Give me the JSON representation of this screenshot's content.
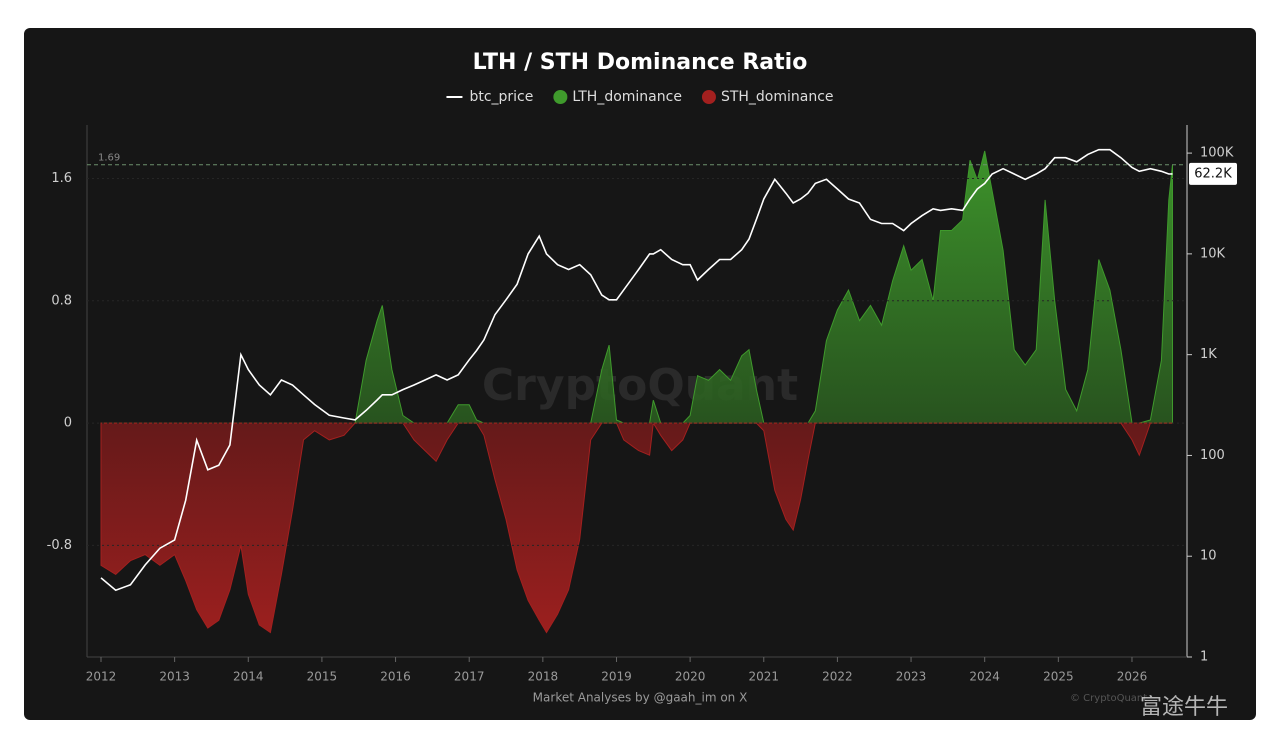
{
  "chart_data": {
    "type": "area_line",
    "title": "LTH / STH Dominance Ratio",
    "footer": "Market Analyses by @gaah_im on X",
    "watermark": "CryptoQuant",
    "copyright": "© CryptoQuant",
    "corner_mark": "富途牛牛",
    "ref_line": {
      "value": 1.69,
      "label": "1.69"
    },
    "last_price": {
      "value": 62200,
      "label": "62.2K"
    },
    "legend": "top",
    "xlim": [
      2011.81,
      2026.72
    ],
    "xticks": [
      2012,
      2013,
      2014,
      2015,
      2016,
      2017,
      2018,
      2019,
      2020,
      2021,
      2022,
      2023,
      2024,
      2025,
      2026
    ],
    "ylim": [
      -1.53,
      1.95
    ],
    "yticks": [
      -0.8,
      0,
      0.8,
      1.6
    ],
    "y2lim": [
      1,
      190000
    ],
    "y2scale": "log",
    "y2ticks": [
      1,
      10,
      100,
      {
        "value": 1000,
        "label": "1K"
      },
      {
        "value": 10000,
        "label": "10K"
      },
      {
        "value": 100000,
        "label": "100K"
      }
    ],
    "x": [
      2012.0,
      2012.2,
      2012.4,
      2012.6,
      2012.8,
      2013.0,
      2013.15,
      2013.3,
      2013.45,
      2013.6,
      2013.75,
      2013.9,
      2014.0,
      2014.15,
      2014.3,
      2014.45,
      2014.6,
      2014.75,
      2014.9,
      2015.1,
      2015.3,
      2015.45,
      2015.6,
      2015.75,
      2015.82,
      2015.95,
      2016.1,
      2016.25,
      2016.4,
      2016.55,
      2016.7,
      2016.85,
      2017.0,
      2017.1,
      2017.2,
      2017.35,
      2017.5,
      2017.65,
      2017.8,
      2017.95,
      2018.05,
      2018.2,
      2018.35,
      2018.5,
      2018.65,
      2018.8,
      2018.9,
      2019.0,
      2019.1,
      2019.3,
      2019.45,
      2019.5,
      2019.6,
      2019.75,
      2019.9,
      2020.0,
      2020.1,
      2020.25,
      2020.4,
      2020.55,
      2020.7,
      2020.8,
      2020.9,
      2021.0,
      2021.15,
      2021.3,
      2021.4,
      2021.5,
      2021.6,
      2021.7,
      2021.85,
      2022.0,
      2022.15,
      2022.3,
      2022.45,
      2022.6,
      2022.75,
      2022.9,
      2023.0,
      2023.15,
      2023.3,
      2023.4,
      2023.55,
      2023.7,
      2023.8,
      2023.9,
      2024.0,
      2024.1,
      2024.25,
      2024.4,
      2024.55,
      2024.7,
      2024.82,
      2024.95,
      2025.1,
      2025.25,
      2025.4,
      2025.55,
      2025.7,
      2025.85,
      2026.0,
      2026.1,
      2026.25,
      2026.4,
      2026.5,
      2026.55
    ],
    "series": [
      {
        "name": "btc_price",
        "color": "#ffffff",
        "axis": "y2",
        "values": [
          6.1,
          4.6,
          5.2,
          8.2,
          12,
          14.5,
          36,
          142,
          72,
          80,
          127,
          1000,
          710,
          500,
          400,
          560,
          500,
          400,
          320,
          250,
          235,
          225,
          280,
          355,
          400,
          400,
          450,
          500,
          560,
          630,
          560,
          630,
          890,
          1100,
          1400,
          2500,
          3500,
          5000,
          10000,
          15000,
          10000,
          7800,
          7000,
          7800,
          6200,
          3900,
          3500,
          3500,
          4400,
          7000,
          10000,
          10000,
          11000,
          8800,
          7800,
          7800,
          5500,
          7000,
          8800,
          8800,
          11000,
          14000,
          22000,
          35000,
          55000,
          40000,
          32000,
          35000,
          40000,
          50000,
          55000,
          44000,
          35000,
          32000,
          22000,
          20000,
          20000,
          17000,
          20000,
          24000,
          28000,
          27000,
          28000,
          27000,
          35000,
          44000,
          50000,
          62000,
          70000,
          62000,
          55000,
          62000,
          70000,
          90000,
          90000,
          82000,
          97000,
          108000,
          108000,
          90000,
          72000,
          66000,
          70000,
          66000,
          62000,
          62200
        ]
      },
      {
        "name": "LTH_dominance",
        "color": "#3f9a2c",
        "values": [
          0,
          0,
          0,
          0,
          0,
          0,
          0,
          0,
          0,
          0,
          0,
          0,
          0,
          0,
          0,
          0,
          0,
          0,
          0,
          0,
          0,
          0,
          0.41,
          0.67,
          0.77,
          0.35,
          0.05,
          0,
          0,
          0,
          0,
          0.12,
          0.12,
          0.02,
          0,
          0,
          0,
          0,
          0,
          0,
          0,
          0,
          0,
          0,
          0,
          0.35,
          0.51,
          0.02,
          0,
          0,
          0,
          0.15,
          0,
          0,
          0,
          0.05,
          0.31,
          0.28,
          0.35,
          0.28,
          0.44,
          0.48,
          0.22,
          0,
          0,
          0,
          0,
          0,
          0,
          0.08,
          0.54,
          0.74,
          0.87,
          0.67,
          0.77,
          0.64,
          0.93,
          1.16,
          1.0,
          1.07,
          0.8,
          1.26,
          1.26,
          1.33,
          1.72,
          1.59,
          1.78,
          1.52,
          1.13,
          0.48,
          0.38,
          0.48,
          1.46,
          0.8,
          0.22,
          0.08,
          0.35,
          1.07,
          0.87,
          0.48,
          0,
          0,
          0.02,
          0.41,
          1.46,
          1.69
        ]
      },
      {
        "name": "STH_dominance",
        "color": "#a3201f",
        "values": [
          -0.93,
          -0.99,
          -0.9,
          -0.86,
          -0.93,
          -0.86,
          -1.03,
          -1.22,
          -1.34,
          -1.29,
          -1.09,
          -0.8,
          -1.12,
          -1.32,
          -1.37,
          -0.99,
          -0.57,
          -0.11,
          -0.05,
          -0.11,
          -0.08,
          0,
          0,
          0,
          0,
          0,
          0,
          -0.11,
          -0.18,
          -0.25,
          -0.11,
          0,
          0,
          0,
          -0.08,
          -0.37,
          -0.63,
          -0.96,
          -1.16,
          -1.29,
          -1.37,
          -1.25,
          -1.09,
          -0.76,
          -0.11,
          0,
          0,
          0,
          -0.11,
          -0.18,
          -0.21,
          0,
          -0.08,
          -0.18,
          -0.11,
          0,
          0,
          0,
          0,
          0,
          0,
          0,
          0,
          -0.05,
          -0.44,
          -0.63,
          -0.7,
          -0.5,
          -0.24,
          0,
          0,
          0,
          0,
          0,
          0,
          0,
          0,
          0,
          0,
          0,
          0,
          0,
          0,
          0,
          0,
          0,
          0,
          0,
          0,
          0,
          0,
          0,
          0,
          0,
          0,
          0,
          0,
          0,
          0,
          0,
          -0.11,
          -0.21,
          0,
          0,
          0,
          0
        ]
      }
    ]
  }
}
